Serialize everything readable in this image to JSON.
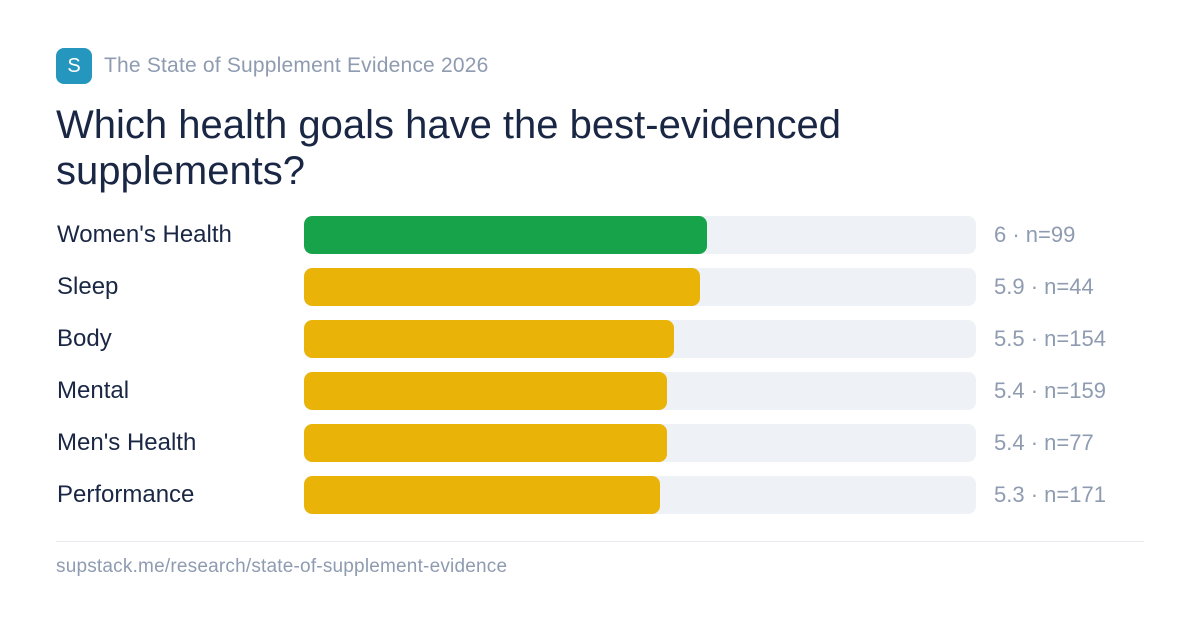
{
  "brand": {
    "logo_letter": "S",
    "name": "The State of Supplement Evidence 2026",
    "accent_color": "#2596be"
  },
  "footer": {
    "url": "supstack.me/research/state-of-supplement-evidence"
  },
  "chart_data": {
    "type": "bar",
    "orientation": "horizontal",
    "title": "Which health goals have the best-evidenced supplements?",
    "xlim": [
      0,
      10
    ],
    "grid": false,
    "legend": "none",
    "categories": [
      "Women's Health",
      "Sleep",
      "Body",
      "Mental",
      "Men's Health",
      "Performance"
    ],
    "values": [
      6,
      5.9,
      5.5,
      5.4,
      5.4,
      5.3
    ],
    "n": [
      99,
      44,
      154,
      159,
      77,
      171
    ],
    "value_labels": [
      "6 · n=99",
      "5.9 · n=44",
      "5.5 · n=154",
      "5.4 · n=159",
      "5.4 · n=77",
      "5.3 · n=171"
    ],
    "bar_colors": [
      "#17a34a",
      "#eab308",
      "#eab308",
      "#eab308",
      "#eab308",
      "#eab308"
    ],
    "track_color": "#eef1f6"
  }
}
